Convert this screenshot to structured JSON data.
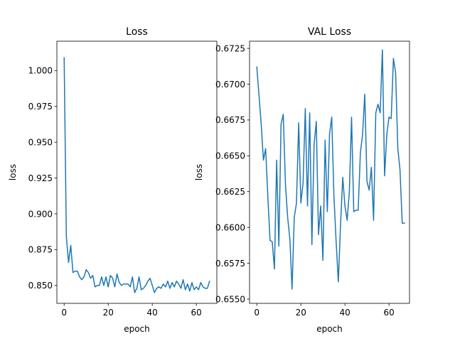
{
  "chart_data": [
    {
      "type": "line",
      "title": "Loss",
      "xlabel": "epoch",
      "ylabel": "loss",
      "xlim": [
        -3.3,
        69.3
      ],
      "ylim": [
        0.8375,
        1.0205
      ],
      "xticks": [
        0,
        20,
        40,
        60
      ],
      "xtick_labels": [
        "0",
        "20",
        "40",
        "60"
      ],
      "yticks": [
        0.85,
        0.875,
        0.9,
        0.925,
        0.95,
        0.975,
        1.0
      ],
      "ytick_labels": [
        "0.850",
        "0.875",
        "0.900",
        "0.925",
        "0.950",
        "0.975",
        "1.000"
      ],
      "grid": false,
      "color": "#1f77b4",
      "series": [
        {
          "values": [
            1.009,
            0.884,
            0.866,
            0.878,
            0.859,
            0.86,
            0.86,
            0.856,
            0.854,
            0.856,
            0.861,
            0.859,
            0.855,
            0.857,
            0.849,
            0.85,
            0.85,
            0.856,
            0.85,
            0.856,
            0.849,
            0.857,
            0.855,
            0.849,
            0.858,
            0.852,
            0.85,
            0.851,
            0.851,
            0.851,
            0.849,
            0.856,
            0.845,
            0.848,
            0.856,
            0.847,
            0.848,
            0.85,
            0.853,
            0.855,
            0.85,
            0.845,
            0.848,
            0.849,
            0.848,
            0.851,
            0.849,
            0.853,
            0.848,
            0.852,
            0.849,
            0.853,
            0.851,
            0.848,
            0.854,
            0.847,
            0.851,
            0.846,
            0.852,
            0.847,
            0.849,
            0.847,
            0.852,
            0.849,
            0.848,
            0.848,
            0.853
          ]
        }
      ]
    },
    {
      "type": "line",
      "title": "VAL Loss",
      "xlabel": "epoch",
      "ylabel": "loss",
      "xlim": [
        -3.3,
        69.3
      ],
      "ylim": [
        0.6547,
        0.673
      ],
      "xticks": [
        0,
        20,
        40,
        60
      ],
      "xtick_labels": [
        "0",
        "20",
        "40",
        "60"
      ],
      "yticks": [
        0.655,
        0.6575,
        0.66,
        0.6625,
        0.665,
        0.6675,
        0.67,
        0.6725
      ],
      "ytick_labels": [
        "0.6550",
        "0.6575",
        "0.6600",
        "0.6625",
        "0.6650",
        "0.6675",
        "0.6700",
        "0.6725"
      ],
      "grid": false,
      "color": "#1f77b4",
      "series": [
        {
          "values": [
            0.6712,
            0.6692,
            0.6672,
            0.6647,
            0.6655,
            0.6622,
            0.6591,
            0.659,
            0.6571,
            0.6647,
            0.6587,
            0.6672,
            0.6679,
            0.663,
            0.6607,
            0.6592,
            0.6557,
            0.6607,
            0.6617,
            0.6673,
            0.6617,
            0.6631,
            0.6683,
            0.6615,
            0.668,
            0.6588,
            0.6658,
            0.6674,
            0.6595,
            0.6615,
            0.6577,
            0.6661,
            0.6611,
            0.6665,
            0.6677,
            0.6622,
            0.659,
            0.6562,
            0.6602,
            0.6635,
            0.6615,
            0.6605,
            0.6625,
            0.6677,
            0.6611,
            0.6612,
            0.6612,
            0.6652,
            0.6665,
            0.6693,
            0.6632,
            0.6626,
            0.6642,
            0.6605,
            0.668,
            0.6686,
            0.668,
            0.6724,
            0.6636,
            0.6665,
            0.6677,
            0.6676,
            0.6718,
            0.6708,
            0.6655,
            0.664,
            0.6603,
            0.6603
          ]
        }
      ]
    }
  ]
}
